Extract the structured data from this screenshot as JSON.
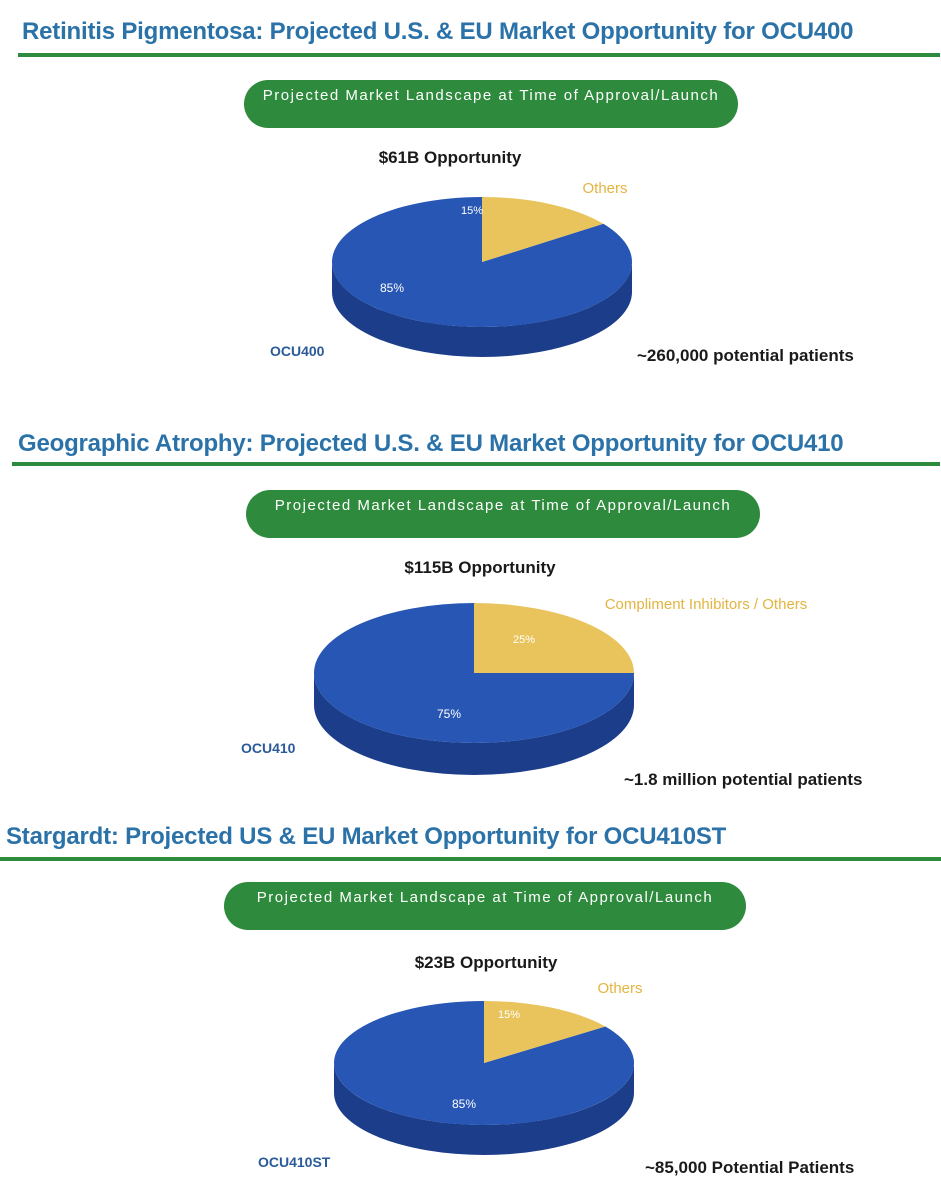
{
  "colors": {
    "title": "#2a72a8",
    "rule": "#2e8a3c",
    "banner": "#2e8a3c",
    "blue_top": "#2856b4",
    "blue_side": "#1b3d8a",
    "yellow_top": "#e9c45c",
    "yellow_side": "#c9a43c",
    "main_label": "#2a5a9a",
    "other_label": "#e3b540",
    "pct_text": "#ffffff"
  },
  "chart_data": [
    {
      "type": "pie",
      "title": "Retinitis Pigmentosa: Projected U.S. & EU Market Opportunity for OCU400",
      "banner": "Projected Market Landscape at Time of Approval/Launch",
      "opportunity": "$61B Opportunity",
      "slices": [
        {
          "label": "OCU400",
          "value": 85,
          "display": "85%"
        },
        {
          "label": "Others",
          "value": 15,
          "display": "15%"
        }
      ],
      "patients": "~260,000 potential patients"
    },
    {
      "type": "pie",
      "title": "Geographic Atrophy: Projected U.S. & EU Market Opportunity for OCU410",
      "banner": "Projected Market Landscape at Time of Approval/Launch",
      "opportunity": "$115B Opportunity",
      "slices": [
        {
          "label": "OCU410",
          "value": 75,
          "display": "75%"
        },
        {
          "label": "Compliment Inhibitors / Others",
          "value": 25,
          "display": "25%"
        }
      ],
      "patients": "~1.8 million potential patients"
    },
    {
      "type": "pie",
      "title": "Stargardt: Projected US & EU Market Opportunity for OCU410ST",
      "banner": "Projected Market Landscape at Time of Approval/Launch",
      "opportunity": "$23B Opportunity",
      "slices": [
        {
          "label": "OCU410ST",
          "value": 85,
          "display": "85%"
        },
        {
          "label": "Others",
          "value": 15,
          "display": "15%"
        }
      ],
      "patients": "~85,000 Potential Patients"
    }
  ]
}
